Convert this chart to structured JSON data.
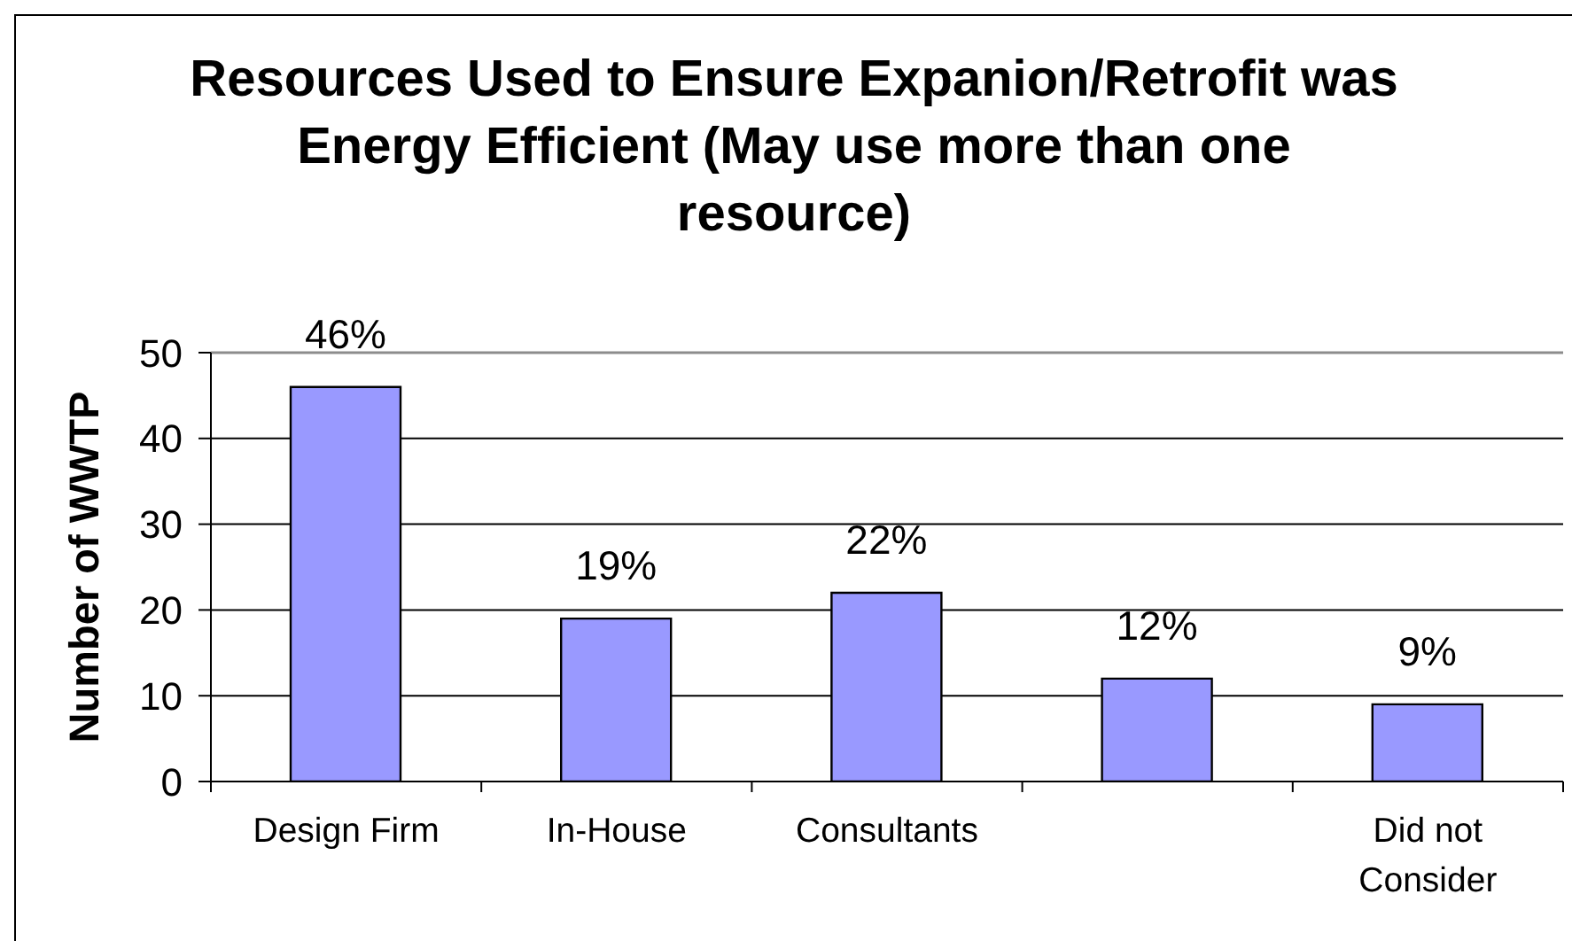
{
  "chart_data": {
    "type": "bar",
    "title": "Resources Used to Ensure Expanion/Retrofit was Energy Efficient (May use more than one resource)",
    "ylabel": "Number of WWTP",
    "categories": [
      "Design Firm",
      "In-House",
      "Consultants",
      null,
      "Did not Consider"
    ],
    "values": [
      46,
      19,
      22,
      12,
      9
    ],
    "value_labels": [
      "46%",
      "19%",
      "22%",
      "12%",
      "9%"
    ],
    "color": "#9999ff",
    "ylim": [
      0,
      50
    ],
    "yticks": [
      0,
      10,
      20,
      30,
      40,
      50
    ],
    "grid": "y"
  }
}
